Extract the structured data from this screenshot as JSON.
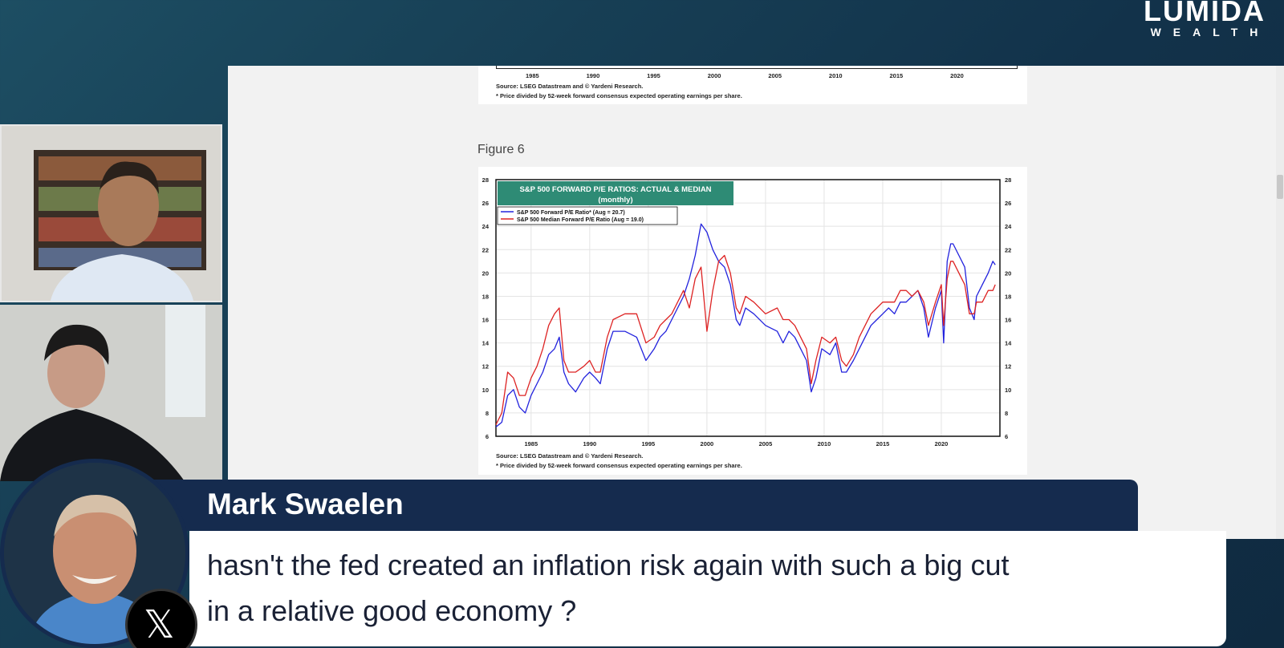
{
  "logo": {
    "main": "LUMIDA",
    "sub": "WEALTH"
  },
  "document": {
    "prev_figure": {
      "x_ticks": [
        "1985",
        "1990",
        "1995",
        "2000",
        "2005",
        "2010",
        "2015",
        "2020"
      ],
      "source": "Source: LSEG Datastream and © Yardeni Research.",
      "footnote": "* Price divided by 52-week forward consensus expected operating earnings per share."
    },
    "figure_label": "Figure 6",
    "figure": {
      "source": "Source: LSEG Datastream and © Yardeni Research.",
      "footnote": "* Price divided by 52-week forward consensus expected operating earnings per share."
    }
  },
  "chart_data": {
    "type": "line",
    "title": "S&P 500 FORWARD P/E RATIOS: ACTUAL & MEDIAN",
    "subtitle": "(monthly)",
    "xlabel": "",
    "ylabel": "",
    "xlim": [
      1982,
      2025
    ],
    "ylim": [
      6,
      28
    ],
    "x_ticks": [
      1985,
      1990,
      1995,
      2000,
      2005,
      2010,
      2015,
      2020
    ],
    "y_ticks": [
      6,
      8,
      10,
      12,
      14,
      16,
      18,
      20,
      22,
      24,
      26,
      28
    ],
    "grid": true,
    "legend_position": "top-left",
    "series": [
      {
        "name": "S&P 500 Forward P/E Ratio* (Aug = 20.7)",
        "color": "#2222dd",
        "x": [
          1982.0,
          1982.5,
          1983.0,
          1983.5,
          1984.0,
          1984.5,
          1985.0,
          1985.5,
          1986.0,
          1986.5,
          1987.0,
          1987.4,
          1987.8,
          1988.2,
          1988.8,
          1989.5,
          1990.0,
          1990.5,
          1990.9,
          1991.5,
          1992.0,
          1993.0,
          1994.0,
          1994.8,
          1995.5,
          1996.0,
          1996.5,
          1997.0,
          1997.5,
          1998.0,
          1998.5,
          1999.0,
          1999.5,
          2000.0,
          2000.5,
          2001.0,
          2001.5,
          2002.0,
          2002.5,
          2002.8,
          2003.3,
          2004.0,
          2005.0,
          2006.0,
          2006.5,
          2007.0,
          2007.5,
          2008.0,
          2008.5,
          2008.9,
          2009.3,
          2009.8,
          2010.5,
          2011.0,
          2011.5,
          2011.9,
          2012.5,
          2013.0,
          2014.0,
          2014.5,
          2015.0,
          2015.5,
          2016.0,
          2016.5,
          2017.0,
          2017.5,
          2018.0,
          2018.5,
          2018.9,
          2019.5,
          2020.0,
          2020.2,
          2020.5,
          2020.8,
          2021.0,
          2021.5,
          2022.0,
          2022.4,
          2022.8,
          2023.0,
          2023.5,
          2024.0,
          2024.4,
          2024.6
        ],
        "values": [
          6.8,
          7.2,
          9.5,
          10.0,
          8.5,
          8.0,
          9.5,
          10.5,
          11.5,
          13.0,
          13.5,
          14.5,
          11.5,
          10.5,
          9.8,
          11.0,
          11.5,
          11.0,
          10.5,
          13.5,
          15.0,
          15.0,
          14.5,
          12.5,
          13.5,
          14.5,
          15.0,
          16.0,
          17.0,
          18.0,
          19.5,
          21.5,
          24.2,
          23.5,
          22.0,
          21.0,
          20.5,
          19.0,
          16.0,
          15.5,
          17.0,
          16.5,
          15.5,
          15.0,
          14.0,
          15.0,
          14.5,
          13.5,
          12.5,
          9.8,
          11.0,
          13.5,
          13.0,
          14.0,
          11.5,
          11.5,
          12.5,
          13.5,
          15.5,
          16.0,
          16.5,
          17.0,
          16.5,
          17.5,
          17.5,
          18.0,
          18.5,
          17.0,
          14.5,
          17.0,
          18.5,
          14.0,
          21.0,
          22.5,
          22.5,
          21.5,
          20.5,
          17.0,
          16.0,
          18.0,
          19.0,
          20.0,
          21.0,
          20.7
        ]
      },
      {
        "name": "S&P 500 Median Forward P/E Ratio  (Aug = 19.0)",
        "color": "#dd2222",
        "x": [
          1982.0,
          1982.5,
          1983.0,
          1983.5,
          1984.0,
          1984.5,
          1985.0,
          1985.5,
          1986.0,
          1986.5,
          1987.0,
          1987.4,
          1987.8,
          1988.2,
          1988.8,
          1989.5,
          1990.0,
          1990.5,
          1990.9,
          1991.5,
          1992.0,
          1993.0,
          1994.0,
          1994.8,
          1995.5,
          1996.0,
          1996.5,
          1997.0,
          1997.5,
          1998.0,
          1998.5,
          1999.0,
          1999.5,
          2000.0,
          2000.5,
          2001.0,
          2001.5,
          2002.0,
          2002.5,
          2002.8,
          2003.3,
          2004.0,
          2005.0,
          2006.0,
          2006.5,
          2007.0,
          2007.5,
          2008.0,
          2008.5,
          2008.9,
          2009.3,
          2009.8,
          2010.5,
          2011.0,
          2011.5,
          2011.9,
          2012.5,
          2013.0,
          2014.0,
          2014.5,
          2015.0,
          2015.5,
          2016.0,
          2016.5,
          2017.0,
          2017.5,
          2018.0,
          2018.5,
          2018.9,
          2019.5,
          2020.0,
          2020.2,
          2020.5,
          2020.8,
          2021.0,
          2021.5,
          2022.0,
          2022.4,
          2022.8,
          2023.0,
          2023.5,
          2024.0,
          2024.4,
          2024.6
        ],
        "values": [
          7.0,
          8.0,
          11.5,
          11.0,
          9.5,
          9.5,
          11.0,
          12.0,
          13.5,
          15.5,
          16.5,
          17.0,
          12.5,
          11.5,
          11.5,
          12.0,
          12.5,
          11.5,
          11.5,
          14.5,
          16.0,
          16.5,
          16.5,
          14.0,
          14.5,
          15.5,
          16.0,
          16.5,
          17.5,
          18.5,
          17.0,
          19.5,
          20.5,
          15.0,
          18.5,
          21.0,
          21.5,
          20.0,
          17.0,
          16.5,
          18.0,
          17.5,
          16.5,
          17.0,
          16.0,
          16.0,
          15.5,
          14.5,
          13.5,
          10.5,
          12.5,
          14.5,
          14.0,
          14.5,
          12.5,
          12.0,
          13.0,
          14.5,
          16.5,
          17.0,
          17.5,
          17.5,
          17.5,
          18.5,
          18.5,
          18.0,
          18.5,
          17.5,
          15.5,
          17.5,
          19.0,
          15.5,
          19.5,
          21.0,
          21.0,
          20.0,
          19.0,
          16.5,
          16.5,
          17.5,
          17.5,
          18.5,
          18.5,
          19.0
        ]
      }
    ]
  },
  "webcams": [
    {
      "label": "host-camera"
    },
    {
      "label": "guest-camera"
    }
  ],
  "lower_third": {
    "name": "Mark Swaelen",
    "question_line1": "hasn't the fed created an inflation risk again with such a big cut",
    "question_line2": "in a relative good economy ?",
    "platform_icon": "x-logo-icon"
  }
}
